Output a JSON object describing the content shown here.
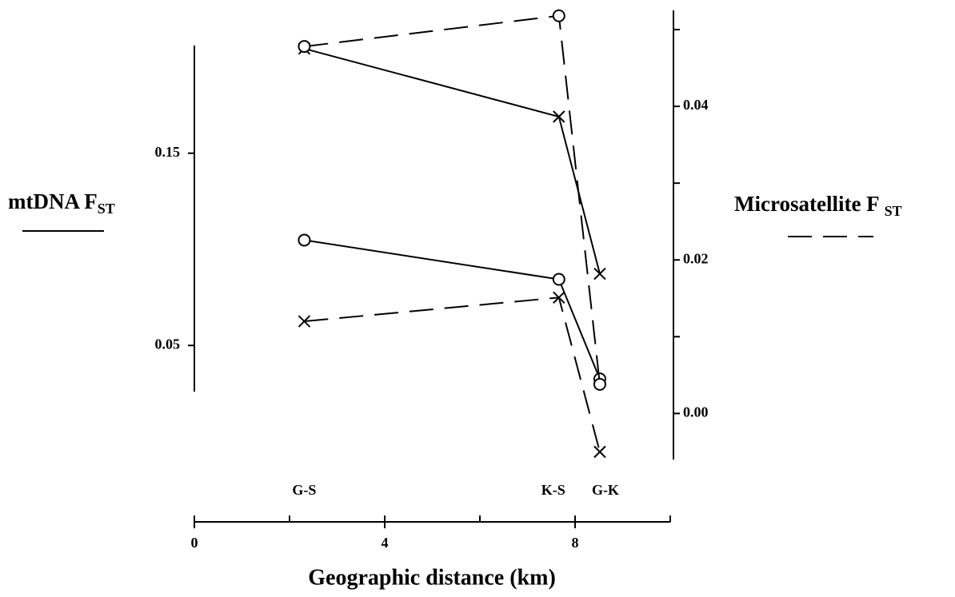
{
  "chart_data": {
    "type": "line",
    "xlabel": "Geographic distance (km)",
    "ylabel": "mtDNA F",
    "ylabel_sub": "ST",
    "y2label": "Microsatellite F",
    "y2label_sub": "ST",
    "x": [
      2.31,
      7.66,
      8.52
    ],
    "x_labels": [
      "G-S",
      "K-S",
      "G-K"
    ],
    "series": [
      {
        "color": "#000000",
        "dash": "solid",
        "marker": "x",
        "values": [
          0.2044,
          0.169,
          0.0873
        ]
      },
      {
        "color": "#000000",
        "dash": "solid",
        "marker": "circle",
        "values": [
          0.1048,
          0.0844,
          0.0326
        ]
      },
      {
        "color": "#000000",
        "dash": "dashed",
        "marker": "circle",
        "axis": "y2",
        "values": [
          0.0478,
          0.0518,
          0.0038
        ]
      },
      {
        "color": "#000000",
        "dash": "dashed",
        "marker": "x",
        "axis": "y2",
        "values": [
          0.012,
          0.0151,
          -0.005
        ]
      }
    ],
    "xlim": [
      0,
      10
    ],
    "xticks": [
      0,
      4,
      8
    ],
    "xminorticks": [
      2,
      6,
      10
    ],
    "ylim": [
      0.026,
      0.206
    ],
    "yticks": [
      0.05,
      0.15
    ],
    "y2lim": [
      -0.006,
      0.0525
    ],
    "y2ticks": [
      {
        "value": 0,
        "label": "0.00"
      },
      0.02,
      0.04
    ],
    "y2minorticks": [
      0.01,
      0.03,
      0.05
    ]
  }
}
